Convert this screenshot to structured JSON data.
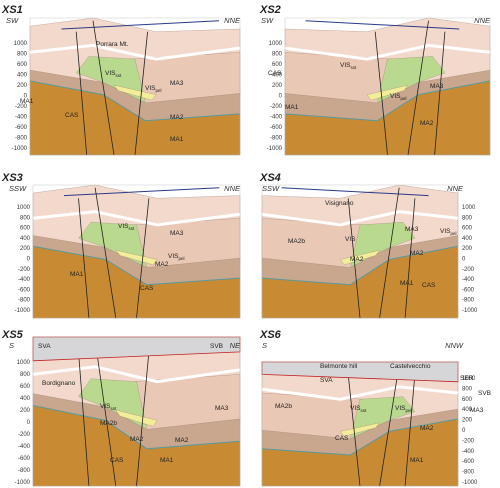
{
  "axis_ticks": [
    "1000",
    "800",
    "600",
    "400",
    "200",
    "0",
    "-200",
    "-400",
    "-600",
    "-800",
    "-1000"
  ],
  "panels": [
    {
      "title": "XS1",
      "left_dir": "SW",
      "right_dir": "NNE",
      "labels": [
        {
          "text": "Porrara Mt."
        },
        {
          "text": "MA1"
        },
        {
          "text": "VIS",
          "sub": "sst"
        },
        {
          "text": "VIS",
          "sub": "pel"
        },
        {
          "text": "CAS"
        },
        {
          "text": "MA3"
        },
        {
          "text": "MA2"
        },
        {
          "text": "MA1"
        }
      ]
    },
    {
      "title": "XS2",
      "left_dir": "SW",
      "right_dir": "NNE",
      "labels": [
        {
          "text": "CAS"
        },
        {
          "text": "VIS",
          "sub": "sst"
        },
        {
          "text": "VIS",
          "sub": "pel"
        },
        {
          "text": "MA3"
        },
        {
          "text": "MA1"
        },
        {
          "text": "MA2"
        }
      ]
    },
    {
      "title": "XS3",
      "left_dir": "SSW",
      "right_dir": "NNE",
      "labels": [
        {
          "text": "MA3"
        },
        {
          "text": "VIS",
          "sub": "sst"
        },
        {
          "text": "VIS",
          "sub": "pel"
        },
        {
          "text": "MA2"
        },
        {
          "text": "MA1"
        },
        {
          "text": "CAS"
        }
      ]
    },
    {
      "title": "XS4",
      "left_dir": "SSW",
      "right_dir": "NNE",
      "labels": [
        {
          "text": "Visignano"
        },
        {
          "text": "MA2b"
        },
        {
          "text": "VIS"
        },
        {
          "text": "MA2"
        },
        {
          "text": "MA3"
        },
        {
          "text": "VIS",
          "sub": "pel"
        },
        {
          "text": "MA2"
        },
        {
          "text": "MA1"
        },
        {
          "text": "CAS"
        }
      ]
    },
    {
      "title": "XS5",
      "left_dir": "S",
      "right_dir": "NE",
      "labels": [
        {
          "text": "SVA"
        },
        {
          "text": "SVB"
        },
        {
          "text": "Bordignano"
        },
        {
          "text": "VIS",
          "sub": "sst"
        },
        {
          "text": "MA2b"
        },
        {
          "text": "MA2"
        },
        {
          "text": "MA2"
        },
        {
          "text": "MA3"
        },
        {
          "text": "CAS"
        },
        {
          "text": "MA1"
        }
      ]
    },
    {
      "title": "XS6",
      "left_dir": "S",
      "right_dir": "NNW",
      "labels": [
        {
          "text": "Belmonte hill"
        },
        {
          "text": "Castelvecchio"
        },
        {
          "text": "SVA"
        },
        {
          "text": "SER"
        },
        {
          "text": "SVB"
        },
        {
          "text": "MA2b"
        },
        {
          "text": "VIS",
          "sub": "sst"
        },
        {
          "text": "VIS",
          "sub": "pel"
        },
        {
          "text": "MA3"
        },
        {
          "text": "MA2"
        },
        {
          "text": "CAS"
        },
        {
          "text": "MA1"
        }
      ]
    }
  ]
}
